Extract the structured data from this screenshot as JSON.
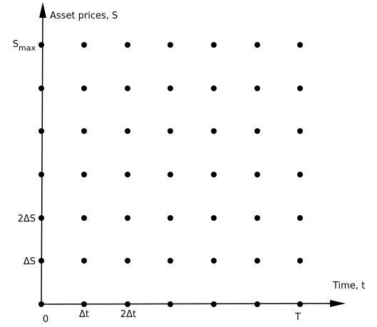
{
  "y_axis": {
    "title": "Asset prices, S",
    "tick_labels": [
      {
        "main": "S",
        "sub": "max"
      },
      {
        "main": "",
        "sub": ""
      },
      {
        "main": "",
        "sub": ""
      },
      {
        "main": "",
        "sub": ""
      },
      {
        "main": "2ΔS",
        "sub": ""
      },
      {
        "main": "ΔS",
        "sub": ""
      },
      {
        "main": "",
        "sub": ""
      }
    ]
  },
  "x_axis": {
    "title": "Time, t",
    "tick_labels": [
      "0",
      "Δt",
      "2Δt",
      "",
      "",
      "",
      "T"
    ]
  },
  "grid": {
    "columns": 7,
    "rows": 7
  },
  "colors": {
    "ink": "#000000",
    "background": "#ffffff"
  }
}
